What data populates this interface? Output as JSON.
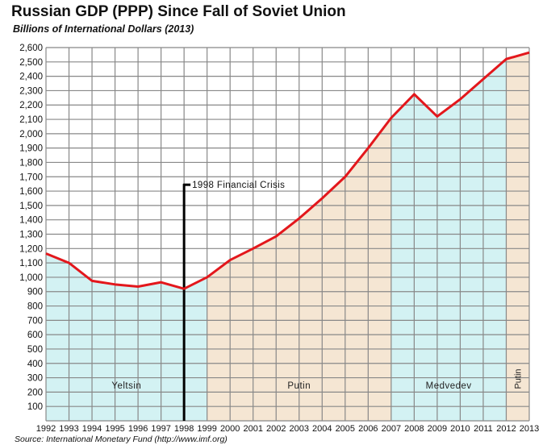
{
  "chart_data": {
    "type": "area",
    "title": "Russian GDP (PPP) Since Fall of Soviet Union",
    "subtitle": "Billions of International Dollars (2013)",
    "source": "Source: International Monetary Fund (http://www.imf.org)",
    "x": [
      1992,
      1993,
      1994,
      1995,
      1996,
      1997,
      1998,
      1999,
      2000,
      2001,
      2002,
      2003,
      2004,
      2005,
      2006,
      2007,
      2008,
      2009,
      2010,
      2011,
      2012,
      2013
    ],
    "series": [
      {
        "values": [
          1165,
          1100,
          975,
          950,
          935,
          965,
          920,
          1000,
          1120,
          1200,
          1285,
          1410,
          1550,
          1700,
          1900,
          2110,
          2275,
          2120,
          2240,
          2380,
          2520,
          2565
        ],
        "color": "#e3171c"
      }
    ],
    "ylim": [
      0,
      2600
    ],
    "ytick_step": 100,
    "grid": true,
    "periods": [
      {
        "label": "Yeltsin",
        "from": 1992,
        "to": 1999,
        "color": "#d3f2f3"
      },
      {
        "label": "Putin",
        "from": 1999,
        "to": 2007,
        "color": "#f5e6d3"
      },
      {
        "label": "Medvedev",
        "from": 2007,
        "to": 2012,
        "color": "#d3f2f3"
      },
      {
        "label": "Putin",
        "from": 2012,
        "to": 2013,
        "color": "#f5e6d3",
        "rotated": true
      }
    ],
    "annotation": {
      "label": "1998 Financial Crisis",
      "x": 1998,
      "y": 1650
    }
  }
}
